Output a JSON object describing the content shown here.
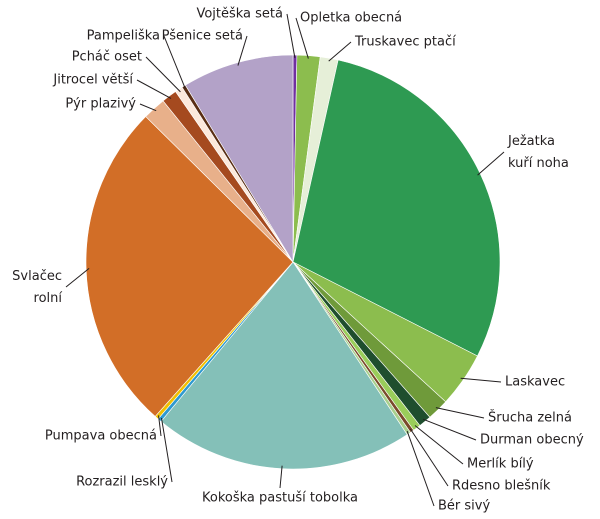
{
  "chart_data": {
    "type": "pie",
    "categories": [
      "Vojtěška setá",
      "Opletka obecná",
      "Truskavec ptačí",
      "Ježatka kuří noha",
      "Laskavec",
      "Šrucha zelná",
      "Durman obecný",
      "Merlík bílý",
      "Rdesno blešník",
      "Bér sivý",
      "Kokoška pastuší tobolka",
      "Rozrazil lesklý",
      "Pumpava obecná",
      "Svlačec rolní",
      "Pýr plazivý",
      "Jitrocel větší",
      "Pcháč oset",
      "Pampeliška",
      "Pšenice setá"
    ],
    "values": [
      0.3,
      1.8,
      1.4,
      29,
      4.3,
      1.7,
      1,
      0.6,
      0.3,
      0.3,
      20.3,
      0.3,
      0.3,
      25.8,
      1.8,
      1.2,
      0.6,
      0.3,
      8.7
    ],
    "colors": [
      "#7030a0",
      "#8cbd4e",
      "#e6efd8",
      "#2e9a52",
      "#8cbd4e",
      "#6f9a3a",
      "#1f4e2e",
      "#9acd5a",
      "#7a4a2a",
      "#a8d08d",
      "#84c0b8",
      "#2e9ad0",
      "#f0c000",
      "#d26e27",
      "#e8b08a",
      "#a54a1f",
      "#fce9dc",
      "#5a2e14",
      "#b3a2c8"
    ]
  }
}
